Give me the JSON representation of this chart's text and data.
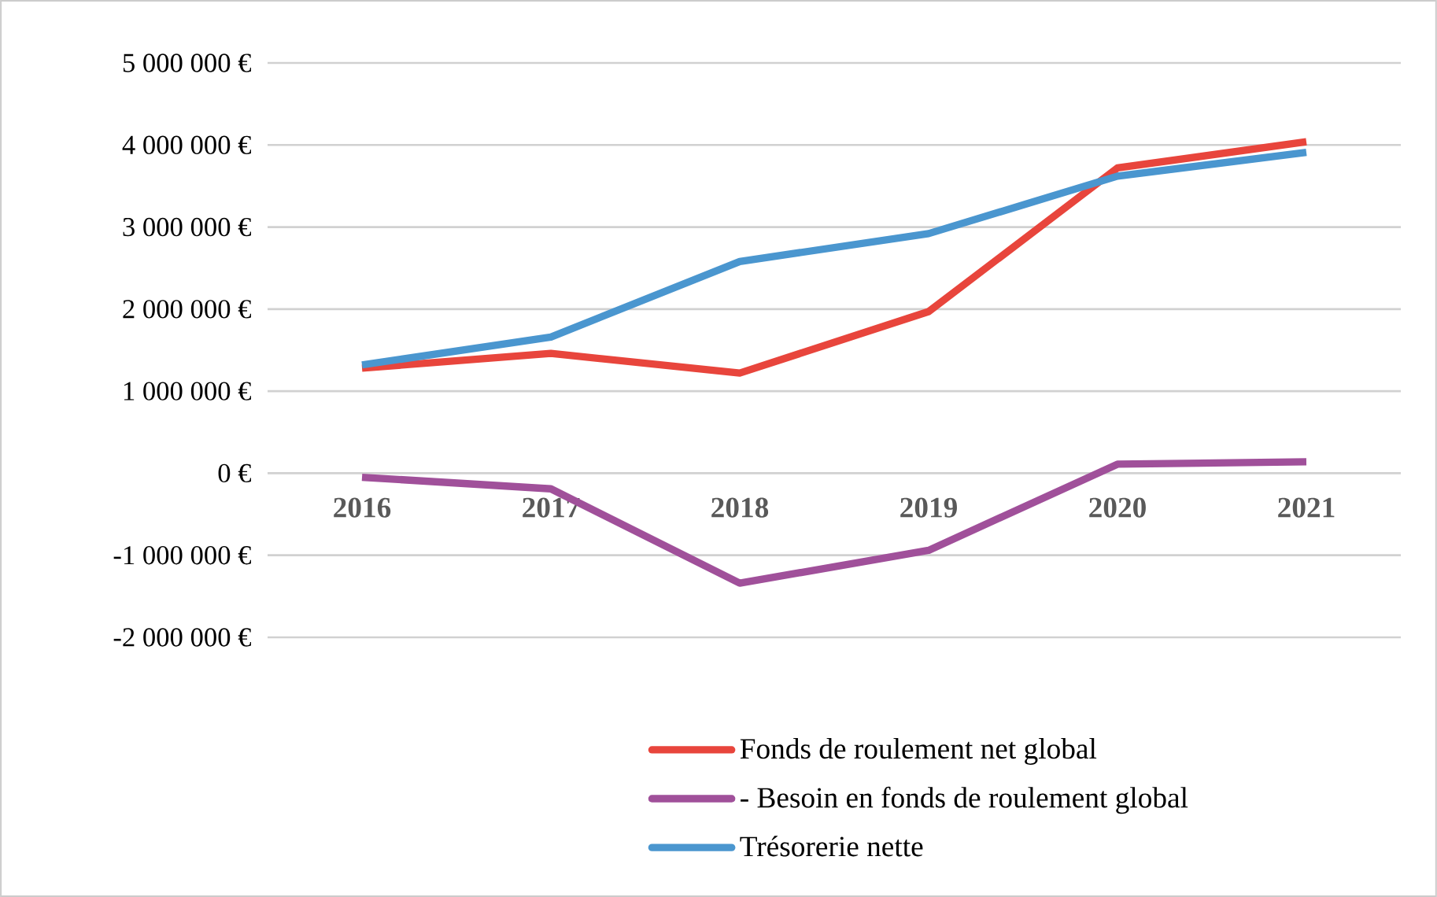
{
  "chart_data": {
    "type": "line",
    "categories": [
      "2016",
      "2017",
      "2018",
      "2019",
      "2020",
      "2021"
    ],
    "series": [
      {
        "name": "Fonds de roulement net global",
        "color": "#e8453c",
        "values": [
          1280000,
          1460000,
          1220000,
          1970000,
          3720000,
          4040000
        ]
      },
      {
        "name": "- Besoin en fonds de roulement global",
        "color": "#a0509a",
        "values": [
          -50000,
          -190000,
          -1340000,
          -940000,
          110000,
          140000
        ]
      },
      {
        "name": "Trésorerie nette",
        "color": "#4a96cf",
        "values": [
          1320000,
          1660000,
          2580000,
          2920000,
          3620000,
          3910000
        ]
      }
    ],
    "ylim": [
      -2000000,
      5000000
    ],
    "yticks": [
      {
        "value": -2000000,
        "label": "-2 000 000 €"
      },
      {
        "value": -1000000,
        "label": "-1 000 000 €"
      },
      {
        "value": 0,
        "label": "0 €"
      },
      {
        "value": 1000000,
        "label": "1 000 000 €"
      },
      {
        "value": 2000000,
        "label": "2 000 000 €"
      },
      {
        "value": 3000000,
        "label": "3 000 000 €"
      },
      {
        "value": 4000000,
        "label": "4 000 000 €"
      },
      {
        "value": 5000000,
        "label": "5 000 000 €"
      }
    ],
    "grid": "y",
    "legend": "bottom",
    "marker": "none",
    "line_style": "solid"
  }
}
